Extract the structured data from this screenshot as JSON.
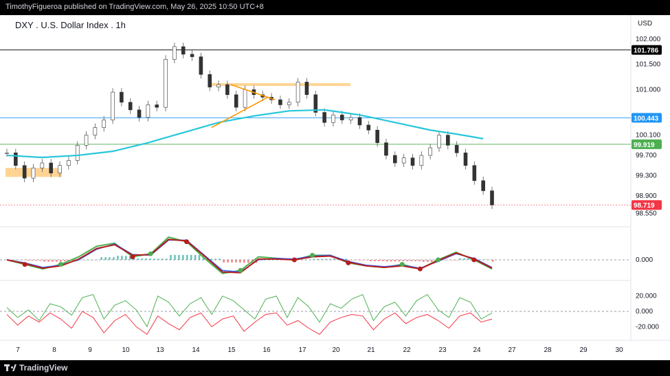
{
  "header": {
    "published_text": "TimothyFigueroa published on TradingView.com, May 26, 2025 10:50 UTC+8"
  },
  "chart": {
    "title": "DXY . U.S. Dollar Index . 1h",
    "currency": "USD"
  },
  "footer": {
    "brand": "TradingView"
  },
  "chart_data": [
    {
      "type": "line",
      "panel": "price",
      "title": "DXY . U.S. Dollar Index . 1h",
      "y_axis_ticks": [
        "102.000",
        "101.500",
        "101.000",
        "100.100",
        "99.700",
        "99.300",
        "98.900",
        "98.550"
      ],
      "ylim": [
        98.45,
        102.12
      ],
      "x_axis_ticks": [
        "7",
        "8",
        "9",
        "10",
        "13",
        "14",
        "15",
        "16",
        "17",
        "20",
        "21",
        "22",
        "23",
        "24",
        "27",
        "28",
        "29",
        "30"
      ],
      "price_labels": [
        {
          "text": "101.786",
          "value": 101.786,
          "color": "#000000"
        },
        {
          "text": "100.443",
          "value": 100.443,
          "color": "#2196f3"
        },
        {
          "text": "99.919",
          "value": 99.919,
          "color": "#4caf50"
        },
        {
          "text": "98.719",
          "value": 98.719,
          "color": "#f23645"
        }
      ],
      "series": [
        {
          "name": "",
          "kind": "candles",
          "x": [
            0,
            0.5,
            1,
            1.5,
            2,
            2.5,
            3,
            3.5,
            4,
            4.5,
            5,
            5.5,
            6,
            6.5,
            7,
            7.5,
            8,
            8.5,
            9,
            9.5,
            10,
            10.5,
            11,
            11.5,
            12,
            12.5,
            13,
            13.5,
            14,
            14.5,
            15,
            15.5,
            16,
            16.5,
            17,
            17.5,
            18,
            18.5,
            19,
            19.5,
            20,
            20.5,
            21,
            21.5,
            22,
            22.5,
            23,
            23.5,
            24,
            24.5,
            25,
            25.5,
            26,
            26.5,
            27,
            27.5
          ],
          "values": [
            99.75,
            99.5,
            99.25,
            99.45,
            99.55,
            99.35,
            99.5,
            99.6,
            99.9,
            100.1,
            100.25,
            100.4,
            100.95,
            100.75,
            100.6,
            100.45,
            100.7,
            100.65,
            101.6,
            101.85,
            101.7,
            101.65,
            101.3,
            101.05,
            101.1,
            100.9,
            100.65,
            101.0,
            100.9,
            100.85,
            100.8,
            100.7,
            100.75,
            101.15,
            100.9,
            100.55,
            100.35,
            100.5,
            100.4,
            100.45,
            100.3,
            100.2,
            99.95,
            99.7,
            99.55,
            99.65,
            99.5,
            99.7,
            99.85,
            100.1,
            99.9,
            99.75,
            99.5,
            99.2,
            99.0,
            98.72
          ]
        },
        {
          "name": "",
          "kind": "moving-average",
          "color": "#26c6da",
          "x": [
            0,
            2,
            4,
            6,
            8,
            10,
            12,
            14,
            16,
            18,
            19,
            20,
            22,
            24,
            25.5,
            27
          ],
          "values": [
            99.7,
            99.66,
            99.7,
            99.78,
            99.95,
            100.15,
            100.35,
            100.48,
            100.58,
            100.6,
            100.55,
            100.5,
            100.35,
            100.2,
            100.12,
            100.03
          ]
        }
      ],
      "annotations": [
        {
          "kind": "horizontal-line",
          "value": 101.786,
          "color": "#000000"
        },
        {
          "kind": "horizontal-line",
          "value": 100.443,
          "color": "#2196f3"
        },
        {
          "kind": "horizontal-line",
          "value": 99.919,
          "color": "#4caf50"
        },
        {
          "kind": "horizontal-line",
          "value": 98.719,
          "color": "#f23645"
        },
        {
          "kind": "zone",
          "value": 101.1,
          "color": "#ffcc80"
        },
        {
          "kind": "zone",
          "value": 99.37,
          "color": "#ffcc80"
        },
        {
          "kind": "triangle",
          "color": "#ff9800"
        }
      ]
    },
    {
      "type": "line",
      "panel": "macd",
      "y_axis_ticks": [
        "0.000"
      ],
      "series": [
        {
          "name": "",
          "color": "#4caf50",
          "values": [
            0,
            -0.3,
            -0.6,
            -0.3,
            0.2,
            0.9,
            1.1,
            0.2,
            0.4,
            1.5,
            1.2,
            0.1,
            -0.9,
            -0.7,
            0.2,
            0.1,
            0.0,
            0.3,
            0.3,
            -0.2,
            -0.4,
            -0.5,
            -0.3,
            -0.6,
            0.0,
            0.5,
            0.0,
            -0.6
          ]
        },
        {
          "name": "",
          "color": "#2962ff",
          "values": [
            0,
            -0.2,
            -0.5,
            -0.35,
            0.0,
            0.7,
            1.05,
            0.35,
            0.3,
            1.3,
            1.3,
            0.3,
            -0.7,
            -0.8,
            0.0,
            0.1,
            0.05,
            0.25,
            0.3,
            -0.1,
            -0.35,
            -0.45,
            -0.35,
            -0.55,
            -0.1,
            0.4,
            0.1,
            -0.5
          ]
        },
        {
          "name": "",
          "color": "#b71c1c",
          "values": [
            0,
            -0.25,
            -0.55,
            -0.4,
            0.05,
            0.75,
            1.0,
            0.3,
            0.35,
            1.35,
            1.25,
            0.25,
            -0.8,
            -0.85,
            0.05,
            0.05,
            0.0,
            0.2,
            0.25,
            -0.15,
            -0.4,
            -0.5,
            -0.4,
            -0.6,
            -0.05,
            0.45,
            0.05,
            -0.55
          ]
        }
      ]
    },
    {
      "type": "line",
      "panel": "oscillator",
      "y_axis_ticks": [
        "20.000",
        "0.000",
        "-20.000"
      ],
      "ylim": [
        -35,
        35
      ],
      "series": [
        {
          "name": "",
          "color": "#4caf50",
          "values": [
            5,
            -8,
            2,
            -12,
            10,
            6,
            -5,
            18,
            22,
            -10,
            8,
            14,
            2,
            -20,
            20,
            12,
            -6,
            10,
            18,
            -4,
            20,
            14,
            2,
            -10,
            16,
            20,
            -8,
            18,
            6,
            -14,
            10,
            4,
            16,
            22,
            -12,
            6,
            12,
            -6,
            14,
            22,
            2,
            -8,
            18,
            12,
            -10,
            -2
          ]
        },
        {
          "name": "",
          "color": "#f23645",
          "values": [
            -4,
            -18,
            -6,
            -14,
            -2,
            -10,
            -22,
            0,
            -8,
            -28,
            -12,
            -4,
            -20,
            -30,
            -6,
            -16,
            -24,
            -8,
            -2,
            -20,
            -10,
            -6,
            -26,
            -14,
            -4,
            -2,
            -18,
            -12,
            -22,
            -30,
            -14,
            -8,
            -4,
            -6,
            -24,
            -10,
            -2,
            -16,
            -8,
            -4,
            -12,
            -22,
            -6,
            -2,
            -14,
            -10
          ]
        }
      ]
    }
  ]
}
